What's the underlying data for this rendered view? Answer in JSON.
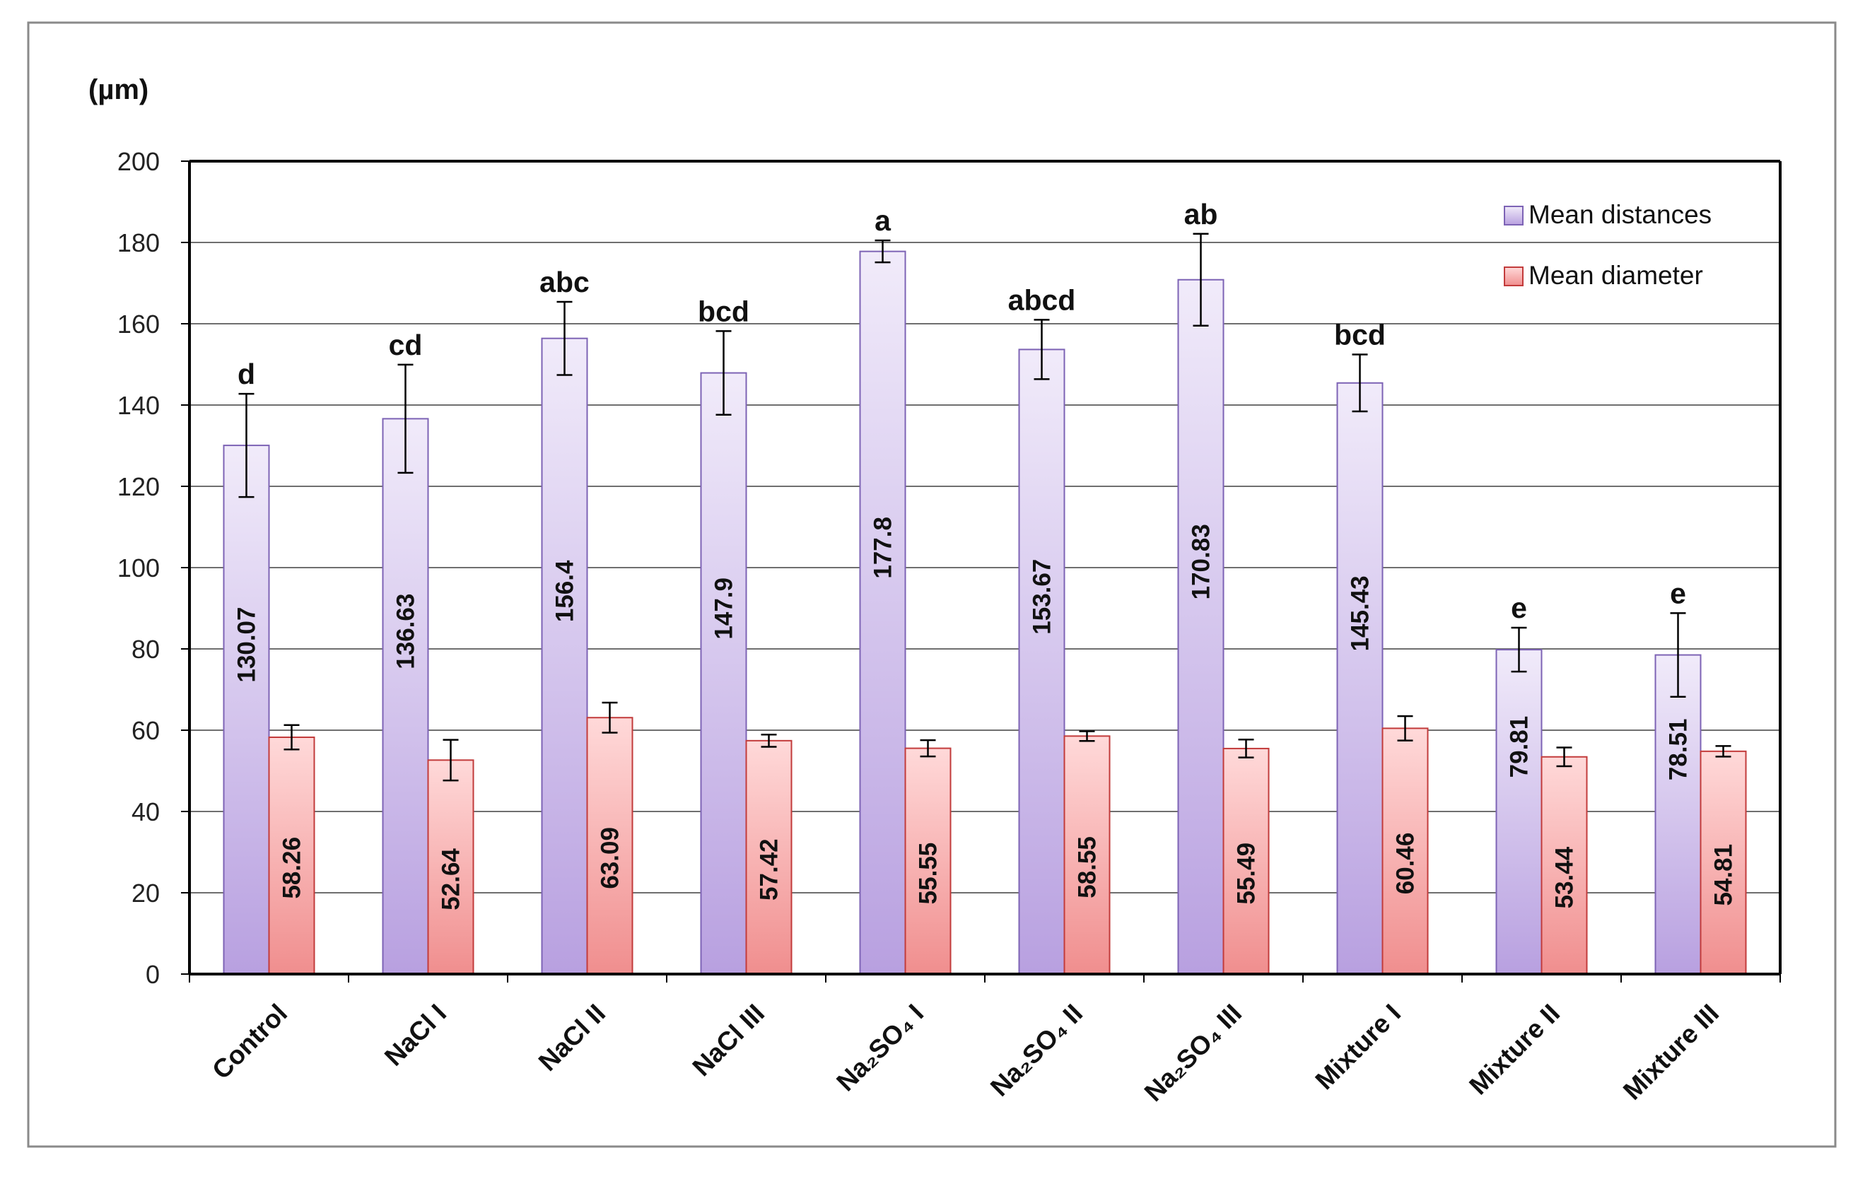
{
  "chart_data": {
    "type": "bar",
    "ylabel": "(µm)",
    "ylim": [
      0,
      200
    ],
    "yticks": [
      0,
      20,
      40,
      60,
      80,
      100,
      120,
      140,
      160,
      180,
      200
    ],
    "grid": true,
    "legend_position": "top-right",
    "categories": [
      "Control",
      "NaCl I",
      "NaCl II",
      "NaCl III",
      "Na₂SO₄ I",
      "Na₂SO₄ II",
      "Na₂SO₄ III",
      "Mixture I",
      "Mixture II",
      "Mixture III"
    ],
    "series": [
      {
        "name": "Mean distances",
        "color": "#c9b6ea",
        "values": [
          130.07,
          136.63,
          156.4,
          147.9,
          177.8,
          153.67,
          170.83,
          145.43,
          79.81,
          78.51
        ],
        "value_labels": [
          "130.07",
          "136.63",
          "156.4",
          "147.9",
          "177.8",
          "153.67",
          "170.83",
          "145.43",
          "79.81",
          "78.51"
        ],
        "errors": [
          12.7,
          13.3,
          9.0,
          10.3,
          2.7,
          7.3,
          11.3,
          7.0,
          5.4,
          10.3
        ],
        "letters": [
          "d",
          "cd",
          "abc",
          "bcd",
          "a",
          "abcd",
          "ab",
          "bcd",
          "e",
          "e"
        ]
      },
      {
        "name": "Mean diameter",
        "color": "#f4a7a7",
        "values": [
          58.26,
          52.64,
          63.09,
          57.42,
          55.55,
          58.55,
          55.49,
          60.46,
          53.44,
          54.81
        ],
        "value_labels": [
          "58.26",
          "52.64",
          "63.09",
          "57.42",
          "55.55",
          "58.55",
          "55.49",
          "60.46",
          "53.44",
          "54.81"
        ],
        "errors": [
          3.0,
          5.0,
          3.7,
          1.5,
          2.0,
          1.2,
          2.2,
          3.0,
          2.3,
          1.3
        ]
      }
    ]
  }
}
